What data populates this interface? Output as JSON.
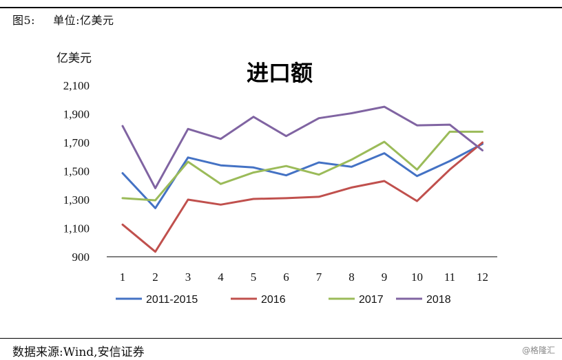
{
  "header": {
    "figure_label": "图5:",
    "unit_text": "单位:亿美元"
  },
  "footer": {
    "source": "数据来源:Wind,安信证券",
    "watermark": "@格隆汇"
  },
  "chart_data": {
    "type": "line",
    "title": "进口额",
    "ylabel": "亿美元",
    "xlabel": "",
    "x": [
      1,
      2,
      3,
      4,
      5,
      6,
      7,
      8,
      9,
      10,
      11,
      12
    ],
    "ylim": [
      900,
      2100
    ],
    "yticks": [
      900,
      1100,
      1300,
      1500,
      1700,
      1900,
      2100
    ],
    "ytick_labels": [
      "900",
      "1,100",
      "1,300",
      "1,500",
      "1,700",
      "1,900",
      "2,100"
    ],
    "grid": false,
    "legend_position": "bottom",
    "series": [
      {
        "name": "2011-2015",
        "color": "#4472C4",
        "values": [
          1485,
          1240,
          1595,
          1540,
          1525,
          1470,
          1560,
          1530,
          1625,
          1465,
          1570,
          1690
        ]
      },
      {
        "name": "2016",
        "color": "#C0504D",
        "values": [
          1125,
          935,
          1300,
          1265,
          1305,
          1310,
          1320,
          1385,
          1430,
          1290,
          1510,
          1700
        ]
      },
      {
        "name": "2017",
        "color": "#9BBB59",
        "values": [
          1310,
          1295,
          1565,
          1410,
          1490,
          1535,
          1475,
          1580,
          1705,
          1510,
          1775,
          1775
        ]
      },
      {
        "name": "2018",
        "color": "#8064A2",
        "values": [
          1815,
          1380,
          1795,
          1725,
          1880,
          1745,
          1870,
          1905,
          1950,
          1820,
          1825,
          1645
        ]
      }
    ]
  }
}
